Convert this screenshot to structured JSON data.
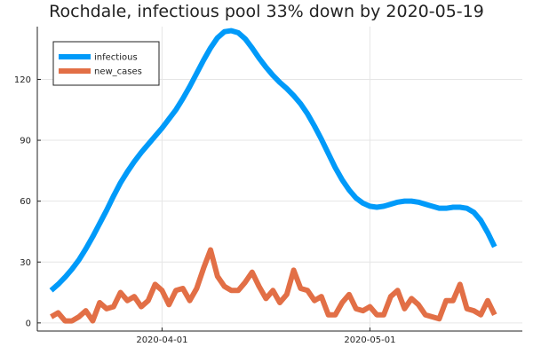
{
  "chart_data": {
    "type": "line",
    "title": "Rochdale, infectious pool 33% down by 2020-05-19",
    "xlabel": "",
    "ylabel": "",
    "x_start": "2020-03-16",
    "x_end": "2020-05-19",
    "xlim": [
      "2020-03-14",
      "2020-05-23"
    ],
    "ylim": [
      -4,
      146
    ],
    "y_ticks": [
      0,
      30,
      60,
      90,
      120
    ],
    "x_ticks": [
      "2020-04-01",
      "2020-05-01"
    ],
    "grid": true,
    "legend_position": "top-left",
    "series": [
      {
        "name": "infectious",
        "color": "#009af9",
        "values": [
          16,
          19,
          22.5,
          26.5,
          31,
          36.5,
          42.5,
          49,
          55.5,
          62.5,
          69,
          74.5,
          79.5,
          84,
          88,
          92,
          96,
          100.5,
          105,
          110.5,
          116.5,
          123,
          129.5,
          135.5,
          140.5,
          143.5,
          144,
          143,
          140,
          135.5,
          130.5,
          126,
          122,
          118.5,
          115.5,
          112,
          108,
          103,
          97,
          90.5,
          83.5,
          76.5,
          70.5,
          65.5,
          61.5,
          59,
          57.5,
          57,
          57.5,
          58.5,
          59.5,
          60,
          60,
          59.5,
          58.5,
          57.5,
          56.5,
          56.5,
          57,
          57,
          56.5,
          54.5,
          50.5,
          44.5,
          37.5
        ]
      },
      {
        "name": "new_cases",
        "color": "#e26f46",
        "values": [
          3,
          5,
          1,
          1,
          3,
          6,
          1,
          10,
          7,
          8,
          15,
          11,
          13,
          8,
          11,
          19,
          16,
          9,
          16,
          17,
          11,
          17,
          27,
          36,
          23,
          18,
          16,
          16,
          20,
          25,
          18,
          12,
          16,
          10,
          14,
          26,
          17,
          16,
          11,
          13,
          4,
          4,
          10,
          14,
          7,
          6,
          8,
          4,
          4,
          13,
          16,
          7,
          12,
          9,
          4,
          3,
          2,
          11,
          11,
          19,
          7,
          6,
          4,
          11,
          4
        ]
      }
    ]
  }
}
